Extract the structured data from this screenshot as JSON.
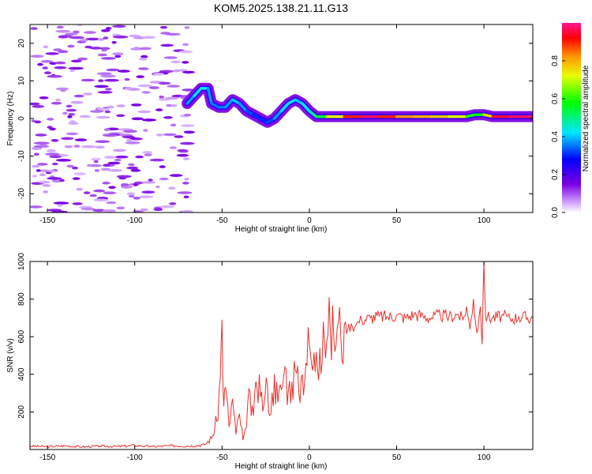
{
  "title": "KOM5.2025.138.21.11.G13",
  "chart_data": [
    {
      "type": "heatmap",
      "xlabel": "Height of straight line (km)",
      "ylabel": "Frequency (Hz)",
      "xlim": [
        -160,
        128
      ],
      "ylim": [
        -25,
        25
      ],
      "x_ticks": [
        -150,
        -100,
        -50,
        0,
        50,
        100
      ],
      "y_ticks": [
        -20,
        -10,
        0,
        10,
        20
      ],
      "colorbar": {
        "label": "Normalized spectral amplitude",
        "range": [
          0,
          1
        ],
        "ticks": [
          0.0,
          0.2,
          0.4,
          0.6,
          0.8
        ]
      },
      "ridge": [
        {
          "x": -70,
          "y": 4,
          "a": 0.35
        },
        {
          "x": -66,
          "y": 6,
          "a": 0.4
        },
        {
          "x": -62,
          "y": 8,
          "a": 0.45
        },
        {
          "x": -58,
          "y": 8,
          "a": 0.4
        },
        {
          "x": -56,
          "y": 4,
          "a": 0.35
        },
        {
          "x": -52,
          "y": 3,
          "a": 0.35
        },
        {
          "x": -48,
          "y": 3,
          "a": 0.35
        },
        {
          "x": -44,
          "y": 5,
          "a": 0.4
        },
        {
          "x": -40,
          "y": 4,
          "a": 0.4
        },
        {
          "x": -36,
          "y": 2,
          "a": 0.35
        },
        {
          "x": -32,
          "y": 1,
          "a": 0.3
        },
        {
          "x": -28,
          "y": 0,
          "a": 0.3
        },
        {
          "x": -24,
          "y": -1,
          "a": 0.3
        },
        {
          "x": -20,
          "y": 0,
          "a": 0.35
        },
        {
          "x": -16,
          "y": 2,
          "a": 0.4
        },
        {
          "x": -12,
          "y": 4,
          "a": 0.45
        },
        {
          "x": -8,
          "y": 5,
          "a": 0.4
        },
        {
          "x": -4,
          "y": 4,
          "a": 0.4
        },
        {
          "x": 0,
          "y": 2,
          "a": 0.45
        },
        {
          "x": 4,
          "y": 0.5,
          "a": 0.5
        },
        {
          "x": 10,
          "y": 0.5,
          "a": 0.6
        },
        {
          "x": 20,
          "y": 0.5,
          "a": 0.85
        },
        {
          "x": 30,
          "y": 0.5,
          "a": 0.95
        },
        {
          "x": 40,
          "y": 0.5,
          "a": 1.0
        },
        {
          "x": 50,
          "y": 0.5,
          "a": 0.8
        },
        {
          "x": 60,
          "y": 0.5,
          "a": 0.85
        },
        {
          "x": 70,
          "y": 0.5,
          "a": 0.75
        },
        {
          "x": 80,
          "y": 0.5,
          "a": 0.8
        },
        {
          "x": 90,
          "y": 0.5,
          "a": 0.65
        },
        {
          "x": 95,
          "y": 1,
          "a": 0.55
        },
        {
          "x": 100,
          "y": 1,
          "a": 0.6
        },
        {
          "x": 105,
          "y": 0.5,
          "a": 0.9
        },
        {
          "x": 115,
          "y": 0.5,
          "a": 1.0
        },
        {
          "x": 127,
          "y": 0.5,
          "a": 0.95
        }
      ]
    },
    {
      "type": "line",
      "xlabel": "Height of straight line (km)",
      "ylabel": "SNR (v/v)",
      "xlim": [
        -160,
        128
      ],
      "ylim": [
        0,
        1000
      ],
      "x_ticks": [
        -150,
        -100,
        -50,
        0,
        50,
        100
      ],
      "y_ticks": [
        200,
        400,
        600,
        800,
        1000
      ],
      "color": "#e8302a",
      "x": [
        -160,
        -150,
        -140,
        -130,
        -120,
        -110,
        -100,
        -90,
        -80,
        -70,
        -60,
        -56,
        -53,
        -51,
        -50,
        -49,
        -48,
        -46,
        -44,
        -42,
        -40,
        -38,
        -36,
        -34,
        -32,
        -30,
        -28,
        -26,
        -24,
        -22,
        -20,
        -18,
        -16,
        -14,
        -12,
        -10,
        -8,
        -6,
        -4,
        -2,
        0,
        2,
        4,
        6,
        8,
        10,
        12,
        14,
        16,
        18,
        20,
        22,
        24,
        26,
        28,
        30,
        35,
        40,
        45,
        50,
        55,
        60,
        65,
        70,
        75,
        80,
        85,
        88,
        90,
        92,
        94,
        96,
        98,
        99,
        100,
        101,
        102,
        105,
        110,
        115,
        120,
        128
      ],
      "y": [
        18,
        15,
        20,
        14,
        18,
        16,
        22,
        15,
        20,
        18,
        25,
        60,
        150,
        380,
        690,
        230,
        330,
        120,
        270,
        80,
        190,
        50,
        120,
        310,
        180,
        330,
        280,
        240,
        340,
        190,
        400,
        250,
        320,
        440,
        310,
        360,
        420,
        300,
        400,
        460,
        560,
        420,
        520,
        540,
        680,
        580,
        640,
        590,
        650,
        610,
        660,
        640,
        670,
        650,
        680,
        690,
        700,
        710,
        705,
        715,
        700,
        720,
        710,
        700,
        715,
        705,
        720,
        690,
        760,
        640,
        800,
        620,
        760,
        560,
        1000,
        700,
        705,
        700,
        710,
        695,
        705,
        700
      ]
    }
  ]
}
